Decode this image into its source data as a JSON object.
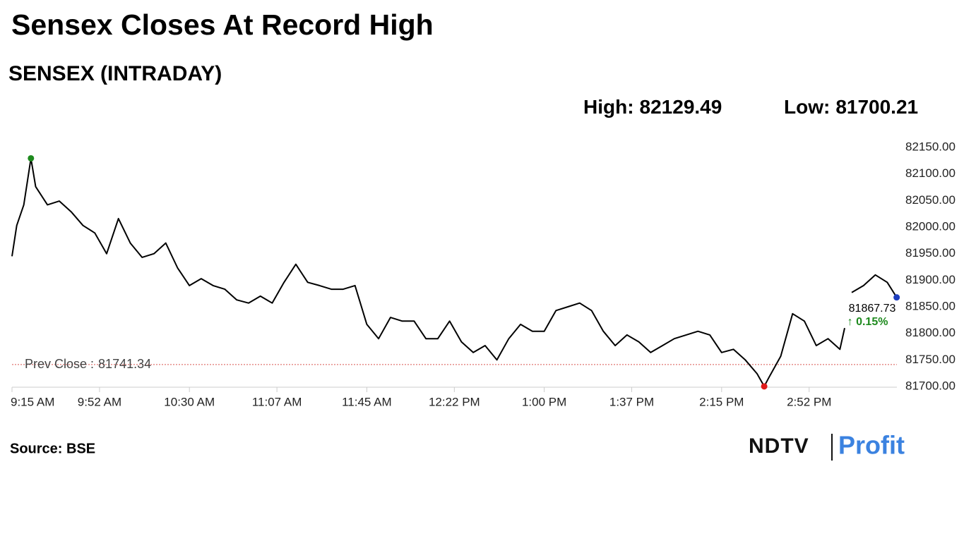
{
  "chart_data": {
    "type": "line",
    "title": "Sensex Closes At Record High",
    "subtitle": "SENSEX (INTRADAY)",
    "high_label": "High:",
    "high": 82129.49,
    "high_color": "#1e8a1e",
    "low_label": "Low:",
    "low": 81700.21,
    "low_color": "#e01b1b",
    "last": 81867.73,
    "last_color": "#1f3fbf",
    "change": {
      "value": 0.15,
      "label": "↑ 0.15%"
    },
    "change_color": "#1e8a1e",
    "prev_close_label": "Prev Close :",
    "prev_close": 81741.34,
    "prev_close_color": "#d9534f",
    "source": "Source: BSE",
    "brand": [
      "NDTV",
      "Profit"
    ],
    "x": [
      0,
      2,
      5,
      8,
      10,
      15,
      20,
      25,
      30,
      35,
      40,
      45,
      50,
      55,
      60,
      65,
      70,
      75,
      80,
      85,
      90,
      95,
      100,
      105,
      110,
      115,
      120,
      125,
      130,
      135,
      140,
      145,
      150,
      155,
      160,
      165,
      170,
      175,
      180,
      185,
      190,
      195,
      200,
      205,
      210,
      215,
      220,
      225,
      230,
      235,
      240,
      245,
      250,
      255,
      260,
      265,
      270,
      275,
      280,
      285,
      290,
      295,
      300,
      305,
      310,
      315,
      318,
      320,
      325,
      330,
      335,
      340,
      345,
      350,
      352,
      353,
      355,
      360,
      365,
      370,
      374
    ],
    "series": [
      {
        "color": "#000000",
        "values": [
          81945,
          82003,
          82042,
          82129.49,
          82076,
          82042,
          82049,
          82029,
          82003,
          81989,
          81950,
          82016,
          81970,
          81943,
          81950,
          81970,
          81923,
          81890,
          81903,
          81890,
          81883,
          81863,
          81857,
          81870,
          81857,
          81896,
          81930,
          81896,
          81890,
          81883,
          81883,
          81890,
          81817,
          81790,
          81830,
          81823,
          81823,
          81790,
          81790,
          81823,
          81784,
          81764,
          81777,
          81750,
          81790,
          81817,
          81804,
          81804,
          81843,
          81850,
          81857,
          81843,
          81804,
          81777,
          81797,
          81784,
          81764,
          81777,
          81790,
          81797,
          81804,
          81797,
          81764,
          81770,
          81750,
          81724,
          81700.21,
          81717,
          81757,
          81837,
          81823,
          81777,
          81790,
          81770,
          81810,
          null,
          81877,
          81890,
          81910,
          81896,
          81867.73
        ]
      }
    ],
    "xlim": [
      0,
      375
    ],
    "xticks": [
      {
        "value": 0,
        "label": "9:15 AM"
      },
      {
        "value": 37,
        "label": "9:52 AM"
      },
      {
        "value": 75,
        "label": "10:30 AM"
      },
      {
        "value": 112,
        "label": "11:07 AM"
      },
      {
        "value": 150,
        "label": "11:45 AM"
      },
      {
        "value": 187,
        "label": "12:22 PM"
      },
      {
        "value": 225,
        "label": "1:00 PM"
      },
      {
        "value": 262,
        "label": "1:37 PM"
      },
      {
        "value": 300,
        "label": "2:15 PM"
      },
      {
        "value": 337,
        "label": "2:52 PM"
      }
    ],
    "ylim": [
      81700,
      82150
    ],
    "yticks": [
      {
        "value": 81700,
        "label": "81700.00"
      },
      {
        "value": 81750,
        "label": "81750.00"
      },
      {
        "value": 81800,
        "label": "81800.00"
      },
      {
        "value": 81850,
        "label": "81850.00"
      },
      {
        "value": 81900,
        "label": "81900.00"
      },
      {
        "value": 81950,
        "label": "81950.00"
      },
      {
        "value": 82000,
        "label": "82000.00"
      },
      {
        "value": 82050,
        "label": "82050.00"
      },
      {
        "value": 82100,
        "label": "82100.00"
      },
      {
        "value": 82150,
        "label": "82150.00"
      }
    ]
  }
}
